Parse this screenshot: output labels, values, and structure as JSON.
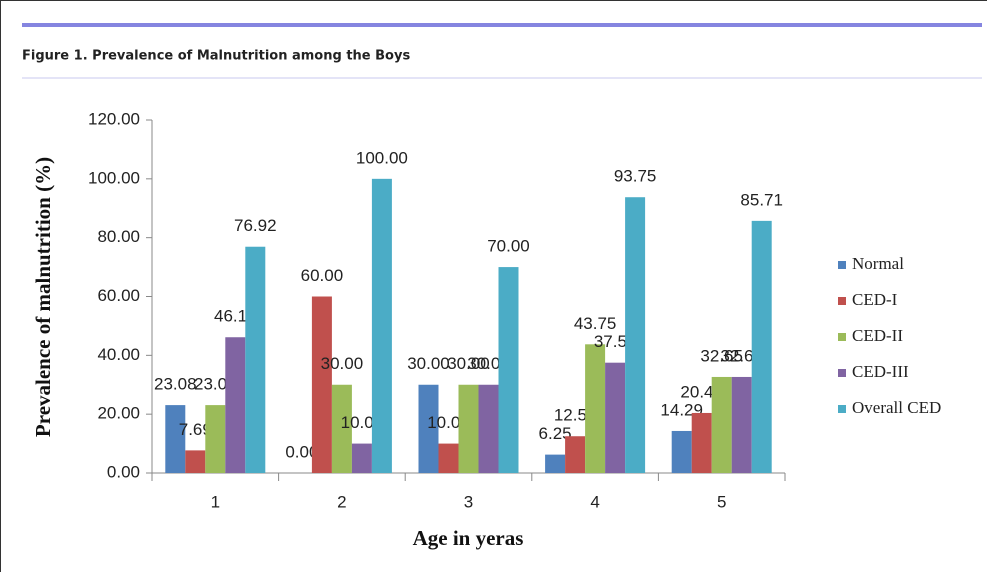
{
  "caption": "Figure 1. Prevalence of Malnutrition among the Boys",
  "chart_data": {
    "type": "bar",
    "xlabel": "Age in yeras",
    "ylabel": "Prevalence of malnutrition (%)",
    "categories": [
      "1",
      "2",
      "3",
      "4",
      "5"
    ],
    "series": [
      {
        "name": "Normal",
        "color": "#4f81bd",
        "values": [
          23.08,
          0,
          30,
          6.25,
          14.29
        ],
        "value_labels": [
          "23.08",
          "0.00",
          "30.00",
          "6.25",
          "14.29"
        ]
      },
      {
        "name": "CED-I",
        "color": "#c0504d",
        "values": [
          7.69,
          60,
          10,
          12.5,
          20.41
        ],
        "value_labels": [
          "7.69",
          "60.00",
          "10.00",
          "12.50",
          "20.41"
        ]
      },
      {
        "name": "CED-II",
        "color": "#9bbb59",
        "values": [
          23.08,
          30,
          30,
          43.75,
          32.65
        ],
        "value_labels": [
          "23.08",
          "30.00",
          "30.00",
          "43.75",
          "32.65"
        ]
      },
      {
        "name": "CED-III",
        "color": "#8064a2",
        "values": [
          46.15,
          10,
          30,
          37.5,
          32.65
        ],
        "value_labels": [
          "46.15",
          "10.00",
          "30.00",
          "37.50",
          "32.65"
        ]
      },
      {
        "name": "Overall CED",
        "color": "#4bacc6",
        "values": [
          76.92,
          100,
          70,
          93.75,
          85.71
        ],
        "value_labels": [
          "76.92",
          "100.00",
          "70.00",
          "93.75",
          "85.71"
        ]
      }
    ],
    "ylim": [
      0,
      120
    ],
    "yticks": [
      {
        "value": 0,
        "label": "0.00"
      },
      {
        "value": 20,
        "label": "20.00"
      },
      {
        "value": 40,
        "label": "40.00"
      },
      {
        "value": 60,
        "label": "60.00"
      },
      {
        "value": 80,
        "label": "80.00"
      },
      {
        "value": 100,
        "label": "100.00"
      },
      {
        "value": 120,
        "label": "120.00"
      }
    ],
    "legend": "right"
  }
}
